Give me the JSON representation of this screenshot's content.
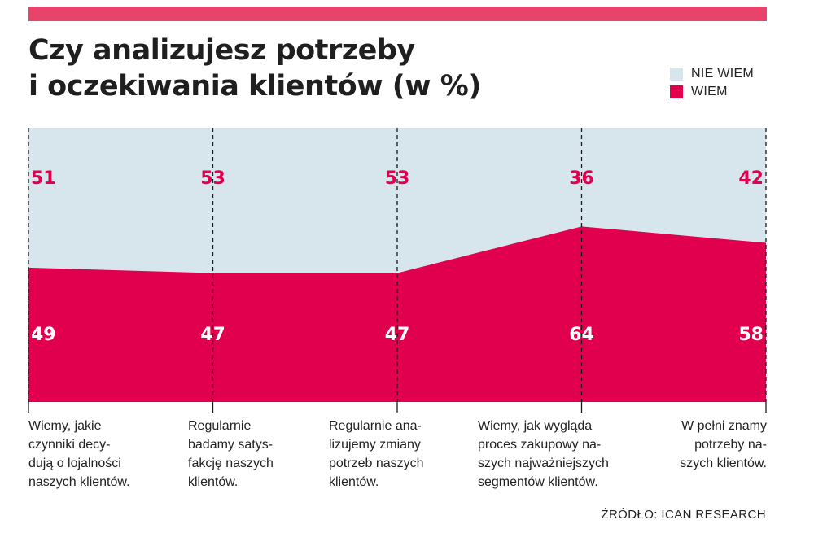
{
  "header": {
    "bar_color": "#e8436a",
    "title_line1": "Czy analizujesz potrzeby",
    "title_line2": "i oczekiwania klientów (w %)"
  },
  "legend": [
    {
      "label": "NIE WIEM",
      "color": "#d7e5ec"
    },
    {
      "label": "WIEM",
      "color": "#e0004d"
    }
  ],
  "chart_data": {
    "type": "area",
    "stacked": true,
    "categories": [
      "Wiemy, jakie\nczynniki decy-\ndują o lojalności\nnaszych klientów.",
      "Regularnie\nbadamy satys-\nfakcję naszych\nklientów.",
      "Regularnie ana-\nlizujemy zmiany\npotrzeb naszych\nklientów.",
      "Wiemy, jak wygląda\nproces zakupowy na-\nszych najważniejszych\nsegmentów klientów.",
      "W pełni znamy\npotrzeby na-\nszych klientów."
    ],
    "series": [
      {
        "name": "WIEM",
        "values": [
          49,
          47,
          47,
          64,
          58
        ],
        "color": "#e0004d",
        "label_color": "#ffffff"
      },
      {
        "name": "NIE WIEM",
        "values": [
          51,
          53,
          53,
          36,
          42
        ],
        "color": "#d7e5ec",
        "label_color": "#e0004d"
      }
    ],
    "ylim": [
      0,
      100
    ],
    "unit": "%"
  },
  "source": "ŹRÓDŁO: ICAN RESEARCH"
}
